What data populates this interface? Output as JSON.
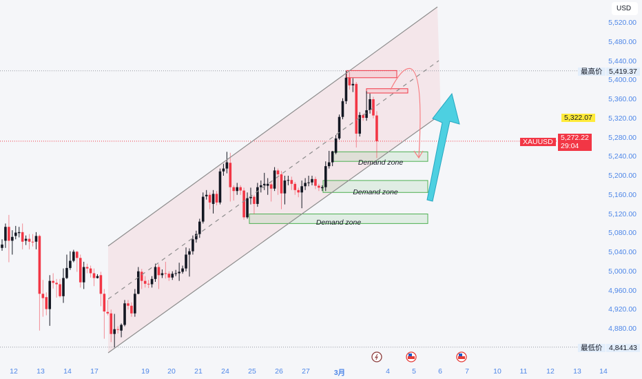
{
  "chart_data": {
    "type": "candlestick",
    "symbol": "XAUUSD",
    "currency": "USD",
    "ylim": [
      4820,
      5560
    ],
    "y_ticks": [
      5520,
      5480,
      5440,
      5400,
      5360,
      5320,
      5280,
      5240,
      5200,
      5160,
      5120,
      5080,
      5040,
      5000,
      4960,
      4920,
      4880
    ],
    "y_tick_labels": [
      "5,520.00",
      "5,480.00",
      "5,440.00",
      "5,400.00",
      "5,360.00",
      "5,320.00",
      "5,280.00",
      "5,240.00",
      "5,200.00",
      "5,160.00",
      "5,120.00",
      "5,080.00",
      "5,040.00",
      "5,000.00",
      "4,960.00",
      "4,920.00",
      "4,880.00"
    ],
    "x_tick_labels": [
      "12",
      "13",
      "14",
      "17",
      "19",
      "20",
      "21",
      "24",
      "25",
      "26",
      "27",
      "3月",
      "4",
      "5",
      "6",
      "7",
      "10",
      "11",
      "12",
      "13",
      "14"
    ],
    "candles_ohlc": [
      [
        5049,
        5067,
        5043,
        5056
      ],
      [
        5064,
        5100,
        5049,
        5093
      ],
      [
        5093,
        5118,
        5019,
        5064
      ],
      [
        5064,
        5086,
        5035,
        5072
      ],
      [
        5074,
        5095,
        5067,
        5081
      ],
      [
        5080,
        5093,
        5071,
        5082
      ],
      [
        5082,
        5100,
        5046,
        5062
      ],
      [
        5064,
        5075,
        5055,
        5068
      ],
      [
        5068,
        5078,
        5046,
        5062
      ],
      [
        5062,
        5078,
        5052,
        5061
      ],
      [
        5062,
        5082,
        5046,
        5074
      ],
      [
        5074,
        5077,
        4876,
        4953
      ],
      [
        4953,
        4982,
        4905,
        4944
      ],
      [
        4946,
        4956,
        4908,
        4921
      ],
      [
        4921,
        4992,
        4886,
        4980
      ],
      [
        4980,
        4996,
        4964,
        4976
      ],
      [
        4976,
        4984,
        4945,
        4973
      ],
      [
        4973,
        4984,
        4945,
        4948
      ],
      [
        4948,
        5006,
        4934,
        4986
      ],
      [
        4986,
        5035,
        4984,
        5007
      ],
      [
        5007,
        5042,
        5003,
        5022
      ],
      [
        5022,
        5045,
        5019,
        5041
      ],
      [
        5041,
        5043,
        4999,
        5028
      ],
      [
        5028,
        5035,
        4966,
        4977
      ],
      [
        4977,
        5020,
        4963,
        5009
      ],
      [
        5009,
        5016,
        4996,
        5006
      ],
      [
        5006,
        5012,
        4987,
        4996
      ],
      [
        4996,
        5006,
        4969,
        4986
      ],
      [
        4986,
        4994,
        4985,
        4990
      ],
      [
        4992,
        4999,
        4927,
        4953
      ],
      [
        4953,
        4963,
        4859,
        4916
      ],
      [
        4915,
        4940,
        4908,
        4912
      ],
      [
        4912,
        4920,
        4852,
        4869
      ],
      [
        4869,
        4911,
        4841,
        4879
      ],
      [
        4879,
        4885,
        4870,
        4878
      ],
      [
        4876,
        4891,
        4862,
        4888
      ],
      [
        4888,
        4940,
        4885,
        4933
      ],
      [
        4933,
        4940,
        4920,
        4928
      ],
      [
        4928,
        4935,
        4905,
        4912
      ],
      [
        4912,
        4963,
        4905,
        4953
      ],
      [
        4953,
        5009,
        4952,
        5000
      ],
      [
        4999,
        5005,
        4963,
        4980
      ],
      [
        4980,
        4990,
        4966,
        4974
      ],
      [
        4974,
        4982,
        4965,
        4973
      ],
      [
        4973,
        4990,
        4966,
        4984
      ],
      [
        4984,
        5016,
        4978,
        5009
      ],
      [
        5009,
        5015,
        4963,
        4992
      ],
      [
        4992,
        5004,
        4986,
        4996
      ],
      [
        4996,
        5020,
        4985,
        4995
      ],
      [
        4995,
        5000,
        4980,
        4987
      ],
      [
        4987,
        5000,
        4982,
        4995
      ],
      [
        4995,
        5003,
        4990,
        4996
      ],
      [
        4996,
        5018,
        4980,
        4999
      ],
      [
        4999,
        5012,
        4995,
        5006
      ],
      [
        5006,
        5050,
        5000,
        5035
      ],
      [
        5035,
        5048,
        4989,
        5042
      ],
      [
        5042,
        5075,
        5035,
        5067
      ],
      [
        5067,
        5085,
        5060,
        5078
      ],
      [
        5078,
        5110,
        5070,
        5104
      ],
      [
        5104,
        5165,
        5100,
        5156
      ],
      [
        5157,
        5170,
        5150,
        5160
      ],
      [
        5160,
        5165,
        5130,
        5144
      ],
      [
        5141,
        5170,
        5121,
        5162
      ],
      [
        5162,
        5168,
        5138,
        5144
      ],
      [
        5144,
        5215,
        5140,
        5209
      ],
      [
        5209,
        5225,
        5200,
        5215
      ],
      [
        5215,
        5250,
        5205,
        5228
      ],
      [
        5227,
        5248,
        5146,
        5176
      ],
      [
        5176,
        5180,
        5148,
        5168
      ],
      [
        5168,
        5185,
        5160,
        5176
      ],
      [
        5176,
        5180,
        5160,
        5169
      ],
      [
        5169,
        5175,
        5108,
        5113
      ],
      [
        5113,
        5165,
        5110,
        5153
      ],
      [
        5153,
        5175,
        5140,
        5156
      ],
      [
        5156,
        5160,
        5120,
        5141
      ],
      [
        5141,
        5185,
        5135,
        5176
      ],
      [
        5176,
        5190,
        5165,
        5180
      ],
      [
        5180,
        5206,
        5170,
        5183
      ],
      [
        5179,
        5195,
        5160,
        5183
      ],
      [
        5182,
        5187,
        5146,
        5173
      ],
      [
        5173,
        5218,
        5168,
        5211
      ],
      [
        5211,
        5215,
        5160,
        5203
      ],
      [
        5203,
        5210,
        5130,
        5163
      ],
      [
        5163,
        5200,
        5140,
        5190
      ],
      [
        5190,
        5200,
        5180,
        5191
      ],
      [
        5191,
        5198,
        5170,
        5183
      ],
      [
        5183,
        5187,
        5160,
        5170
      ],
      [
        5170,
        5175,
        5155,
        5165
      ],
      [
        5165,
        5190,
        5132,
        5178
      ],
      [
        5178,
        5195,
        5170,
        5185
      ],
      [
        5185,
        5200,
        5178,
        5186
      ],
      [
        5186,
        5200,
        5180,
        5193
      ],
      [
        5193,
        5198,
        5172,
        5179
      ],
      [
        5179,
        5183,
        5168,
        5175
      ],
      [
        5174,
        5180,
        5168,
        5176
      ],
      [
        5176,
        5230,
        5168,
        5220
      ],
      [
        5220,
        5252,
        5215,
        5228
      ],
      [
        5228,
        5252,
        5220,
        5251
      ],
      [
        5248,
        5285,
        5245,
        5278
      ],
      [
        5278,
        5328,
        5275,
        5323
      ],
      [
        5323,
        5362,
        5318,
        5356
      ],
      [
        5356,
        5419,
        5350,
        5405
      ],
      [
        5405,
        5417,
        5380,
        5389
      ],
      [
        5389,
        5404,
        5375,
        5392
      ],
      [
        5392,
        5396,
        5259,
        5288
      ],
      [
        5288,
        5333,
        5282,
        5327
      ],
      [
        5327,
        5330,
        5315,
        5321
      ],
      [
        5321,
        5377,
        5315,
        5337
      ],
      [
        5337,
        5372,
        5330,
        5360
      ],
      [
        5360,
        5365,
        5320,
        5326
      ],
      [
        5326,
        5335,
        5237,
        5272
      ]
    ],
    "annotations": {
      "demand_zones": [
        {
          "label": "Demand zone",
          "low": 5230,
          "high": 5250
        },
        {
          "label": "Demand zone",
          "low": 5165,
          "high": 5190
        },
        {
          "label": "Demand zone",
          "low": 5100,
          "high": 5120
        }
      ],
      "supply_boxes": [
        {
          "low": 5405,
          "high": 5420
        },
        {
          "low": 5373,
          "high": 5382
        }
      ]
    },
    "colors": {
      "up": "#131722",
      "down": "#f23645",
      "zone": "#4caf50",
      "arrow": "#4dd0e1"
    }
  },
  "axis": {
    "currency_label": "USD"
  },
  "tags": {
    "high_label": "最高价",
    "high_value": "5,419.37",
    "marked_value": "5,322.07",
    "symbol": "XAUUSD",
    "last_price": "5,272.22",
    "countdown": "29:04",
    "low_label": "最低价",
    "low_value": "4,841.43"
  },
  "events": [
    {
      "icon": "lightning-event-icon"
    },
    {
      "icon": "us-flag-event-icon"
    },
    {
      "icon": "us-flag-event-icon"
    }
  ]
}
